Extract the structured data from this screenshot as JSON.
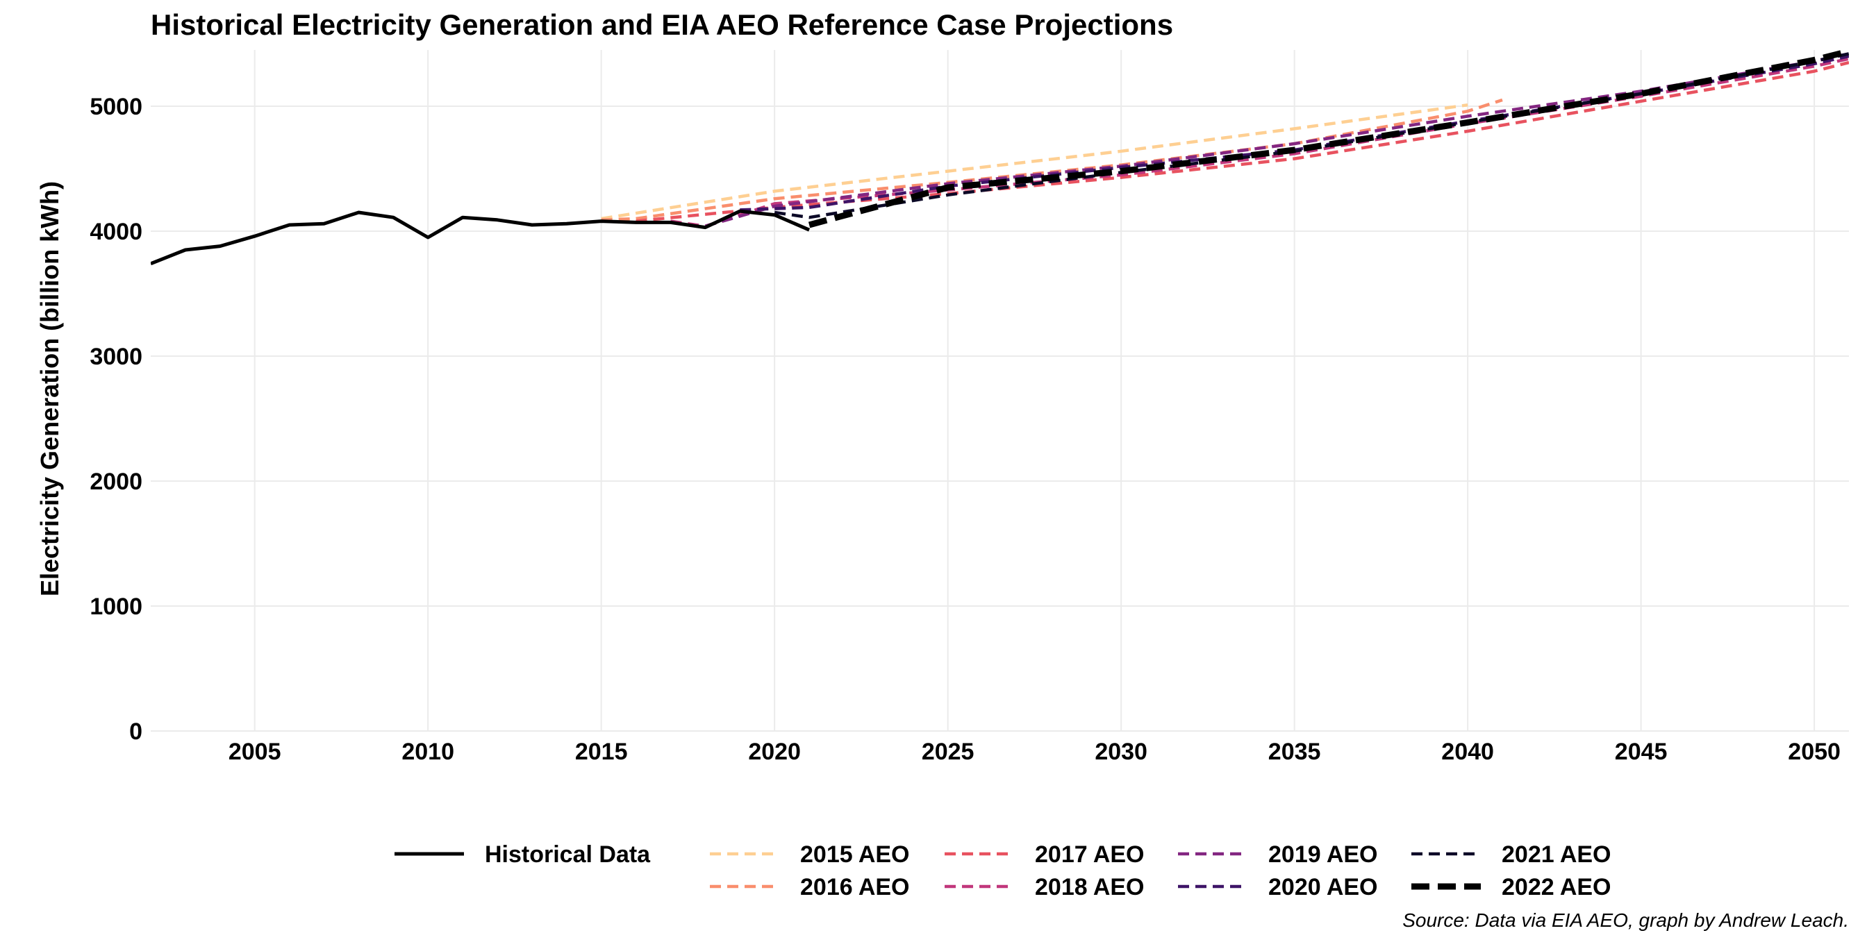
{
  "chart_data": {
    "type": "line",
    "title": "Historical Electricity Generation and EIA AEO Reference Case Projections",
    "xlabel": "",
    "ylabel": "Electricity Generation (billion kWh)",
    "caption": "Source: Data via EIA AEO, graph by Andrew Leach.",
    "xlim": [
      2002,
      2051
    ],
    "ylim": [
      0,
      5450
    ],
    "x_ticks": [
      2005,
      2010,
      2015,
      2020,
      2025,
      2030,
      2035,
      2040,
      2045,
      2050
    ],
    "y_ticks": [
      0,
      1000,
      2000,
      3000,
      4000,
      5000
    ],
    "grid": true,
    "legend_position": "bottom",
    "series": [
      {
        "name": "Historical Data",
        "color": "#000000",
        "dash": "solid",
        "x": [
          2002,
          2003,
          2004,
          2005,
          2006,
          2007,
          2008,
          2009,
          2010,
          2011,
          2012,
          2013,
          2014,
          2015,
          2016,
          2017,
          2018,
          2019,
          2020,
          2021
        ],
        "y": [
          3740,
          3850,
          3880,
          3960,
          4050,
          4060,
          4150,
          4110,
          3950,
          4110,
          4090,
          4050,
          4060,
          4080,
          4070,
          4070,
          4030,
          4160,
          4130,
          4010
        ]
      },
      {
        "name": "2015 AEO",
        "color": "#fecf92",
        "dash": "dashed",
        "x": [
          2015,
          2020,
          2025,
          2030,
          2035,
          2040
        ],
        "y": [
          4100,
          4320,
          4480,
          4640,
          4820,
          5010
        ]
      },
      {
        "name": "2016 AEO",
        "color": "#f98e6d",
        "dash": "dashed",
        "x": [
          2015,
          2016,
          2020,
          2025,
          2030,
          2035,
          2040,
          2041
        ],
        "y": [
          4090,
          4100,
          4260,
          4390,
          4530,
          4700,
          4960,
          5050
        ]
      },
      {
        "name": "2017 AEO",
        "color": "#e8525f",
        "dash": "dashed",
        "x": [
          2016,
          2020,
          2025,
          2030,
          2035,
          2040,
          2045,
          2050,
          2051
        ],
        "y": [
          4080,
          4190,
          4300,
          4430,
          4580,
          4800,
          5040,
          5280,
          5350
        ]
      },
      {
        "name": "2018 AEO",
        "color": "#c1377c",
        "dash": "dashed",
        "x": [
          2017,
          2018,
          2020,
          2025,
          2030,
          2035,
          2040,
          2045,
          2050,
          2051
        ],
        "y": [
          4080,
          4040,
          4220,
          4330,
          4450,
          4620,
          4860,
          5080,
          5320,
          5380
        ]
      },
      {
        "name": "2019 AEO",
        "color": "#832681",
        "dash": "dashed",
        "x": [
          2018,
          2020,
          2025,
          2030,
          2035,
          2040,
          2045,
          2050,
          2051
        ],
        "y": [
          4040,
          4200,
          4380,
          4520,
          4700,
          4920,
          5120,
          5360,
          5420
        ]
      },
      {
        "name": "2020 AEO",
        "color": "#3e1467",
        "dash": "dashed",
        "x": [
          2019,
          2021,
          2025,
          2030,
          2035,
          2040,
          2045,
          2050,
          2051
        ],
        "y": [
          4170,
          4190,
          4360,
          4510,
          4650,
          4880,
          5100,
          5340,
          5400
        ]
      },
      {
        "name": "2021 AEO",
        "color": "#0c0927",
        "dash": "dashed",
        "x": [
          2020,
          2021,
          2023,
          2025,
          2030,
          2035,
          2040,
          2045,
          2050,
          2051
        ],
        "y": [
          4150,
          4110,
          4200,
          4290,
          4470,
          4640,
          4870,
          5100,
          5360,
          5420
        ]
      },
      {
        "name": "2022 AEO",
        "color": "#000000",
        "dash": "dashed-thick",
        "x": [
          2021,
          2025,
          2030,
          2035,
          2040,
          2045,
          2050,
          2051
        ],
        "y": [
          4050,
          4350,
          4480,
          4650,
          4870,
          5100,
          5370,
          5440
        ]
      }
    ]
  }
}
